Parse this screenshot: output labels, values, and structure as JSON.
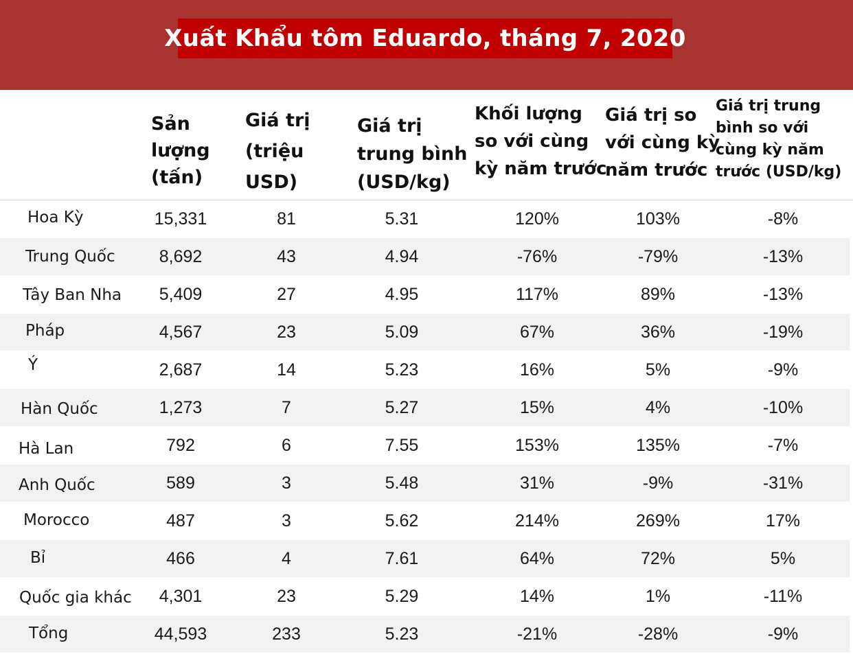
{
  "title": "Xuất Khẩu tôm Eduardo, tháng 7, 2020",
  "colors": {
    "banner": "#a83432",
    "title_box": "#c00000",
    "row_alt": "#f2f2f2"
  },
  "headers": [
    "",
    "Sản\nlượng\n(tấn)",
    "Giá trị\n(triệu\nUSD)",
    "Giá trị\ntrung bình\n(USD/kg)",
    "Khối lượng\nso với cùng\nkỳ năm trước",
    "Giá trị so\nvới cùng kỳ\nnăm trước",
    "Giá trị trung\nbình so với\ncùng kỳ năm\ntrước (USD/kg)"
  ],
  "rows": [
    [
      "Hoa Kỳ",
      "15,331",
      "81",
      "5.31",
      "120%",
      "103%",
      "-8%"
    ],
    [
      "Trung Quốc",
      "8,692",
      "43",
      "4.94",
      "-76%",
      "-79%",
      "-13%"
    ],
    [
      "Tây Ban Nha",
      "5,409",
      "27",
      "4.95",
      "117%",
      "89%",
      "-13%"
    ],
    [
      "Pháp",
      "4,567",
      "23",
      "5.09",
      "67%",
      "36%",
      "-19%"
    ],
    [
      "Ý",
      "2,687",
      "14",
      "5.23",
      "16%",
      "5%",
      "-9%"
    ],
    [
      "Hàn Quốc",
      "1,273",
      "7",
      "5.27",
      "15%",
      "4%",
      "-10%"
    ],
    [
      "Hà Lan",
      "792",
      "6",
      "7.55",
      "153%",
      "135%",
      "-7%"
    ],
    [
      "Anh Quốc",
      "589",
      "3",
      "5.48",
      "31%",
      "-9%",
      "-31%"
    ],
    [
      "Morocco",
      "487",
      "3",
      "5.62",
      "214%",
      "269%",
      "17%"
    ],
    [
      "Bỉ",
      "466",
      "4",
      "7.61",
      "64%",
      "72%",
      "5%"
    ],
    [
      "Quốc gia khác",
      "4,301",
      "23",
      "5.29",
      "14%",
      "1%",
      "-11%"
    ],
    [
      "Tổng",
      "44,593",
      "233",
      "5.23",
      "-21%",
      "-28%",
      "-9%"
    ]
  ]
}
